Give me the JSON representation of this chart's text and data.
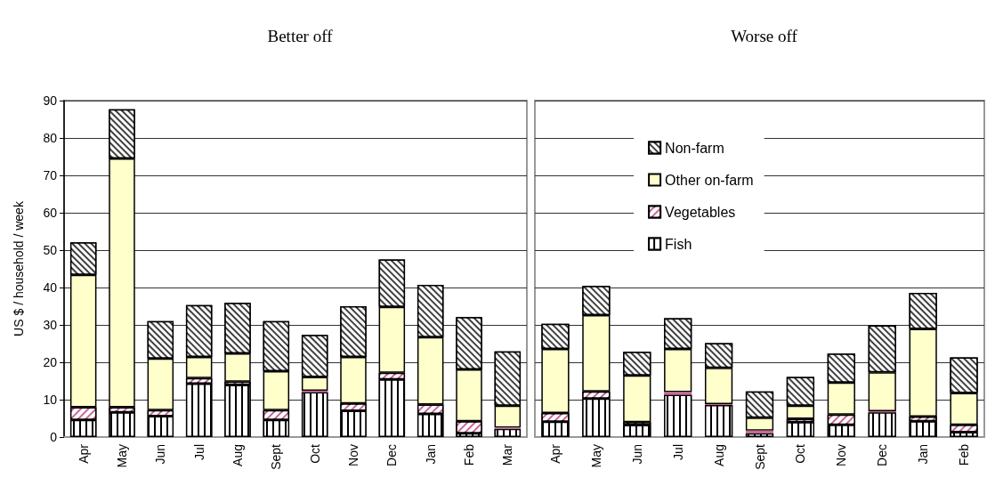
{
  "chart_data": [
    {
      "type": "bar",
      "title": "Better off",
      "ylabel": "US $ / household / week",
      "categories": [
        "Apr",
        "May",
        "Jun",
        "Jul",
        "Aug",
        "Sept",
        "Oct",
        "Nov",
        "Dec",
        "Jan",
        "Feb",
        "Mar"
      ],
      "series": [
        {
          "color": "#000000",
          "values": [
            4.6,
            6.6,
            5.6,
            14.3,
            13.9,
            4.6,
            12.0,
            7.0,
            15.4,
            6.2,
            1.0,
            2.2
          ]
        },
        {
          "color": "#cc6699",
          "values": [
            3.4,
            1.4,
            1.6,
            1.5,
            0.9,
            2.6,
            0.4,
            2.0,
            1.8,
            2.5,
            3.2,
            0.3
          ]
        },
        {
          "color": "#ffffcc",
          "values": [
            35.4,
            66.5,
            13.8,
            5.6,
            7.6,
            10.4,
            3.7,
            12.4,
            17.6,
            18.0,
            13.9,
            5.9
          ]
        },
        {
          "color": "#404040",
          "values": [
            8.7,
            13.2,
            10.0,
            13.9,
            13.5,
            13.4,
            11.2,
            13.6,
            12.7,
            14.0,
            14.0,
            14.5
          ]
        }
      ],
      "stacked": true,
      "ylim": [
        0,
        90
      ],
      "yticks": [
        0,
        10,
        20,
        30,
        40,
        50,
        60,
        70,
        80,
        90
      ],
      "grid": "y"
    },
    {
      "type": "bar",
      "title": "Worse off",
      "categories": [
        "Apr",
        "May",
        "Jun",
        "Jul",
        "Aug",
        "Sept",
        "Oct",
        "Nov",
        "Dec",
        "Jan",
        "Feb"
      ],
      "series": [
        {
          "name": "Fish",
          "color": "#000000",
          "values": [
            4.1,
            10.3,
            3.2,
            11.3,
            8.6,
            1.0,
            4.0,
            3.3,
            6.6,
            4.2,
            1.3
          ]
        },
        {
          "name": "Vegetables",
          "color": "#cc6699",
          "values": [
            2.3,
            1.9,
            0.8,
            0.7,
            0.2,
            0.7,
            0.9,
            2.7,
            0.3,
            1.3,
            2.0
          ]
        },
        {
          "name": "Other on-farm",
          "color": "#ffffcc",
          "values": [
            17.2,
            20.4,
            12.5,
            11.6,
            9.7,
            3.5,
            3.5,
            8.6,
            10.4,
            23.4,
            8.5
          ]
        },
        {
          "name": "Non-farm",
          "color": "#404040",
          "values": [
            6.7,
            7.8,
            6.3,
            8.2,
            6.6,
            7.0,
            7.7,
            7.7,
            12.6,
            9.7,
            9.5
          ]
        }
      ],
      "stacked": true,
      "ylim": [
        0,
        90
      ],
      "yticks": [
        0,
        10,
        20,
        30,
        40,
        50,
        60,
        70,
        80,
        90
      ],
      "grid": "y",
      "legend": "top",
      "tick_labels": "x"
    }
  ]
}
